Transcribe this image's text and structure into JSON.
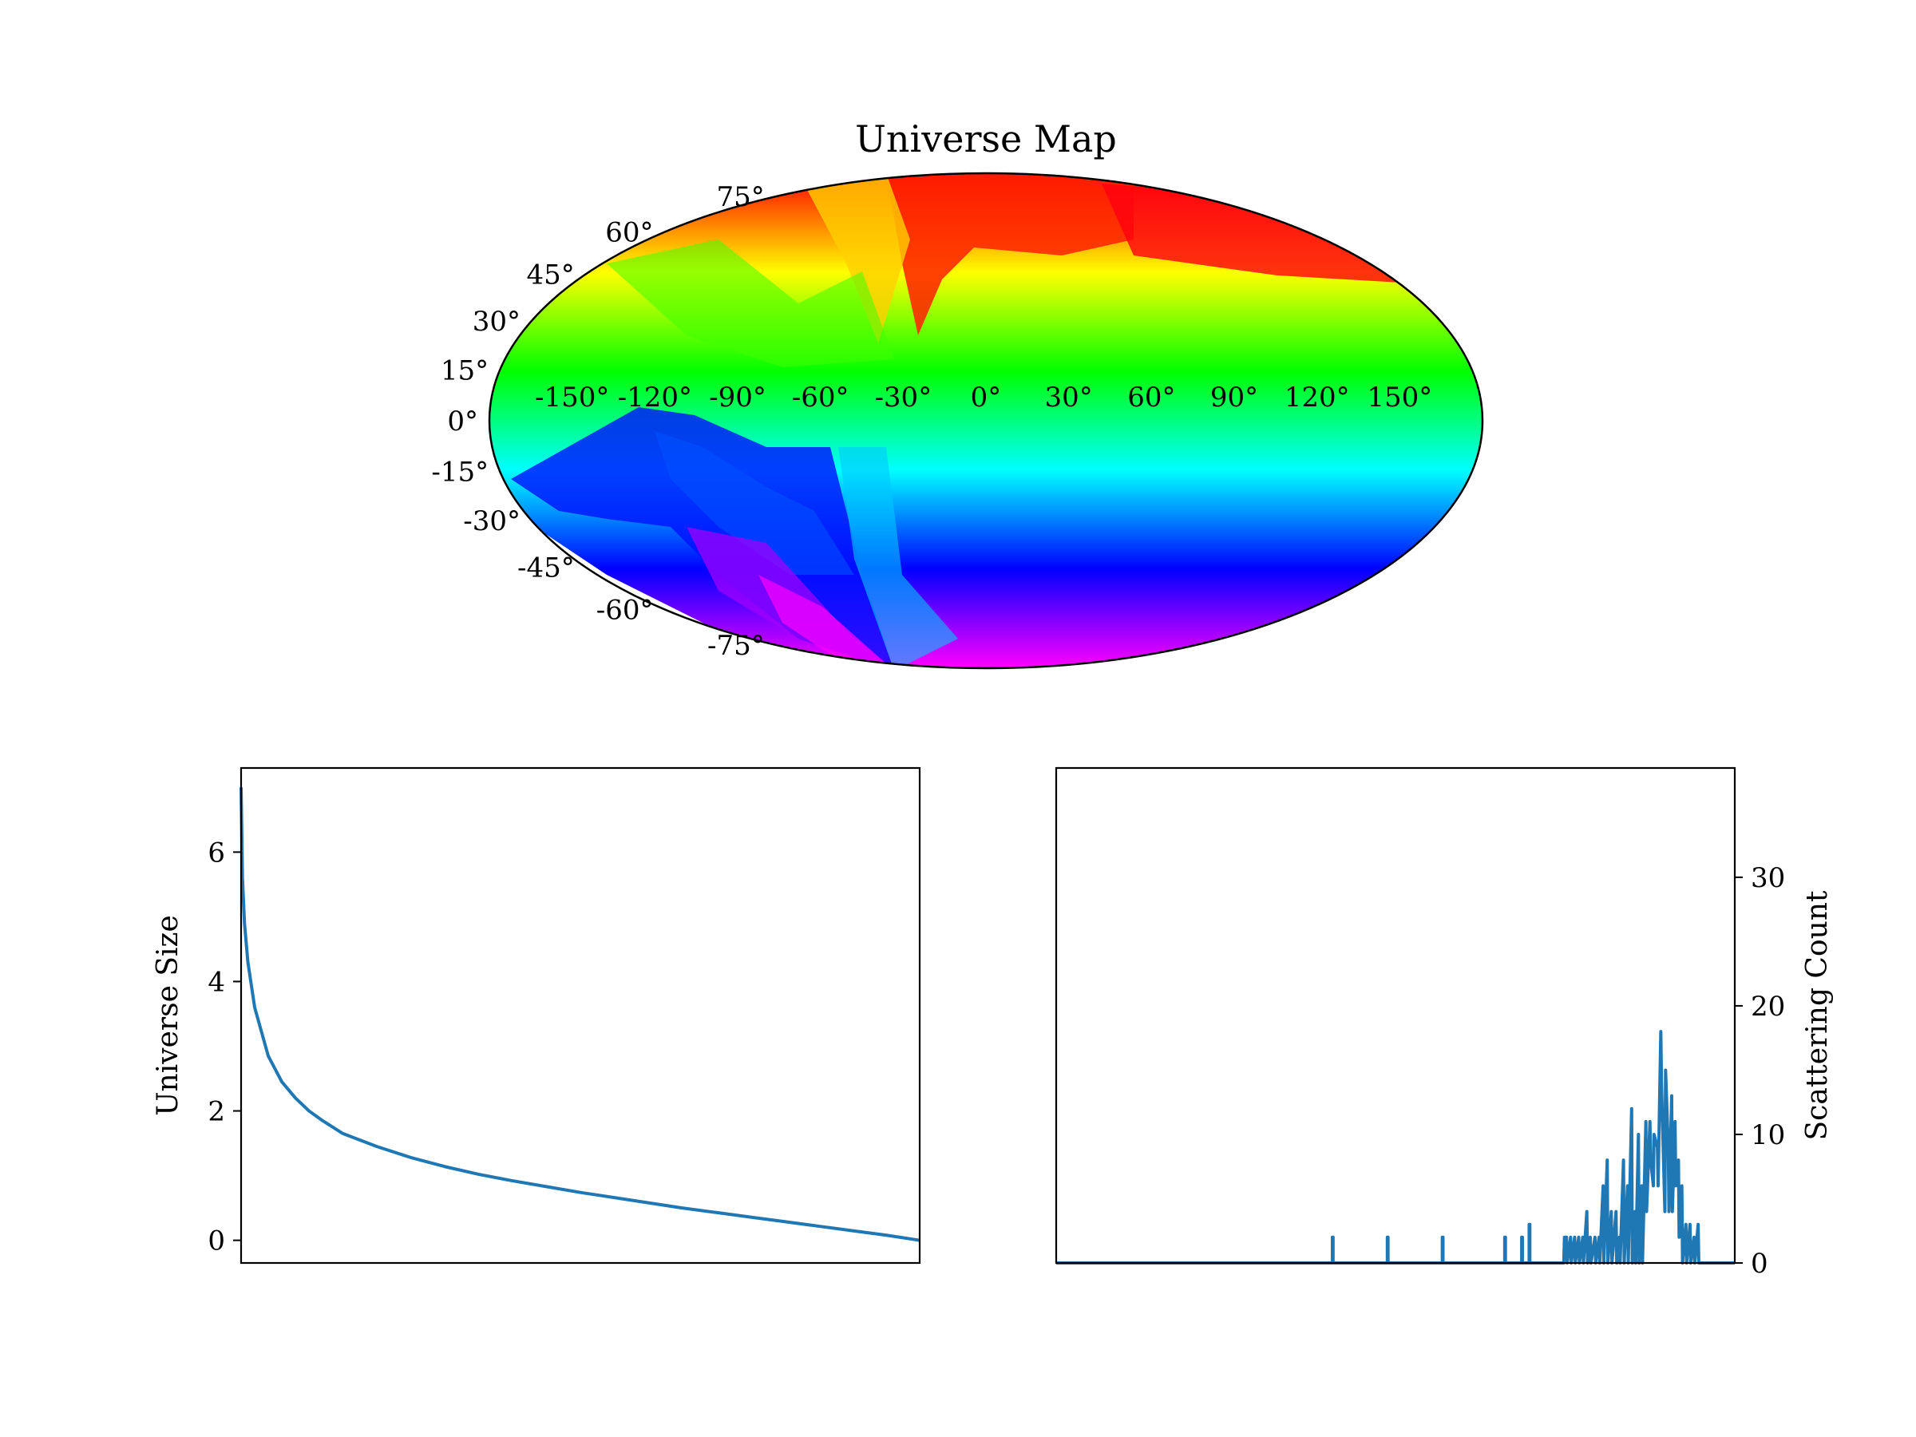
{
  "chart_data": [
    {
      "type": "heatmap",
      "projection": "mollweide",
      "title": "Universe Map",
      "lon_ticks": [
        "-150°",
        "-120°",
        "-90°",
        "-60°",
        "-30°",
        "0°",
        "30°",
        "60°",
        "90°",
        "120°",
        "150°"
      ],
      "lon_values": [
        -150,
        -120,
        -90,
        -60,
        -30,
        0,
        30,
        60,
        90,
        120,
        150
      ],
      "lat_ticks": [
        "75°",
        "60°",
        "45°",
        "30°",
        "15°",
        "0°",
        "-15°",
        "-30°",
        "-45°",
        "-60°",
        "-75°"
      ],
      "lat_values": [
        75,
        60,
        45,
        30,
        15,
        0,
        -15,
        -30,
        -45,
        -60,
        -75
      ],
      "colormap": "hsv",
      "color_stops": [
        "#ff0000",
        "#ff8000",
        "#ffff00",
        "#80ff00",
        "#00ff00",
        "#00ff80",
        "#00ffff",
        "#0080ff",
        "#0000ff",
        "#8000ff",
        "#ff00ff"
      ],
      "grid": false
    },
    {
      "type": "line",
      "title": "",
      "xlabel": "",
      "ylabel": "Universe Size",
      "ylim": [
        -0.35,
        7.3
      ],
      "xlim": [
        0,
        1
      ],
      "yticks": [
        0,
        2,
        4,
        6
      ],
      "ytick_labels": [
        "0",
        "2",
        "4",
        "6"
      ],
      "x_ticks_shown": false,
      "series_color": "#1f77b4",
      "x": [
        0.0,
        0.002,
        0.005,
        0.01,
        0.02,
        0.04,
        0.06,
        0.08,
        0.1,
        0.12,
        0.15,
        0.2,
        0.25,
        0.3,
        0.35,
        0.4,
        0.45,
        0.5,
        0.55,
        0.6,
        0.65,
        0.7,
        0.75,
        0.8,
        0.85,
        0.9,
        0.95,
        1.0
      ],
      "y": [
        7.0,
        5.6,
        4.9,
        4.3,
        3.6,
        2.85,
        2.45,
        2.2,
        2.0,
        1.85,
        1.65,
        1.45,
        1.28,
        1.14,
        1.02,
        0.92,
        0.83,
        0.74,
        0.66,
        0.58,
        0.5,
        0.43,
        0.36,
        0.29,
        0.22,
        0.15,
        0.08,
        0.0
      ]
    },
    {
      "type": "line",
      "title": "",
      "xlabel": "",
      "ylabel": "Scattering Count",
      "ylim": [
        0,
        38.5
      ],
      "xlim": [
        0,
        1
      ],
      "yticks": [
        0,
        10,
        20,
        30
      ],
      "ytick_labels": [
        "0",
        "10",
        "20",
        "30"
      ],
      "yaxis_position": "right",
      "x_ticks_shown": false,
      "series_color": "#1f77b4",
      "x": [
        0.0,
        0.407,
        0.407,
        0.408,
        0.408,
        0.488,
        0.488,
        0.489,
        0.489,
        0.569,
        0.569,
        0.57,
        0.57,
        0.661,
        0.661,
        0.662,
        0.662,
        0.686,
        0.686,
        0.687,
        0.687,
        0.697,
        0.697,
        0.698,
        0.698,
        0.748,
        0.749,
        0.752,
        0.753,
        0.758,
        0.759,
        0.764,
        0.765,
        0.77,
        0.771,
        0.776,
        0.777,
        0.782,
        0.783,
        0.787,
        0.788,
        0.794,
        0.795,
        0.8,
        0.801,
        0.806,
        0.807,
        0.812,
        0.813,
        0.818,
        0.819,
        0.825,
        0.826,
        0.83,
        0.831,
        0.836,
        0.837,
        0.842,
        0.843,
        0.848,
        0.849,
        0.853,
        0.854,
        0.858,
        0.859,
        0.863,
        0.864,
        0.869,
        0.87,
        0.875,
        0.876,
        0.88,
        0.881,
        0.886,
        0.887,
        0.891,
        0.892,
        0.897,
        0.898,
        0.902,
        0.903,
        0.907,
        0.908,
        0.912,
        0.913,
        0.917,
        0.918,
        0.922,
        0.923,
        0.928,
        0.929,
        0.934,
        0.935,
        0.94,
        0.941,
        0.946,
        0.947,
        0.951,
        0.952,
        0.956,
        0.957,
        0.962,
        0.963,
        1.0
      ],
      "y": [
        0,
        0,
        2,
        2,
        0,
        0,
        2,
        2,
        0,
        0,
        2,
        2,
        0,
        0,
        2,
        2,
        0,
        0,
        2,
        2,
        0,
        0,
        3,
        3,
        0,
        0,
        2,
        2,
        0,
        2,
        0,
        2,
        0,
        2,
        0,
        2,
        0,
        4,
        0,
        2,
        0,
        2,
        0,
        2,
        0,
        6,
        0,
        8,
        0,
        4,
        0,
        4,
        0,
        2,
        0,
        8,
        0,
        6,
        0,
        12,
        0,
        4,
        0,
        10,
        0,
        6,
        0,
        11,
        4,
        11,
        8,
        6,
        10,
        9,
        6,
        18,
        14,
        4,
        15,
        9,
        4,
        13,
        4,
        11,
        6,
        8,
        2,
        6,
        0,
        3,
        0,
        3,
        0,
        2,
        0,
        3,
        0,
        0,
        0,
        0,
        0,
        0,
        0,
        0
      ]
    }
  ]
}
